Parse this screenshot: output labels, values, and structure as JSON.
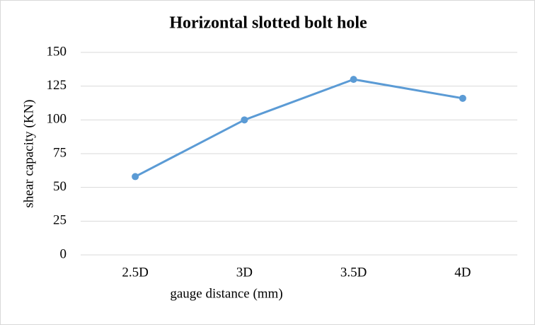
{
  "chart_data": {
    "type": "line",
    "title": "Horizontal slotted bolt hole",
    "x_label": "gauge distance (mm)",
    "y_label": "shear capacity (KN)",
    "categories": [
      "2.5D",
      "3D",
      "3.5D",
      "4D"
    ],
    "values": [
      58,
      100,
      130,
      116
    ],
    "color": "#5b9bd5",
    "ylim": [
      0,
      150
    ],
    "yticks": [
      0,
      25,
      50,
      75,
      100,
      125,
      150
    ],
    "grid": true
  }
}
